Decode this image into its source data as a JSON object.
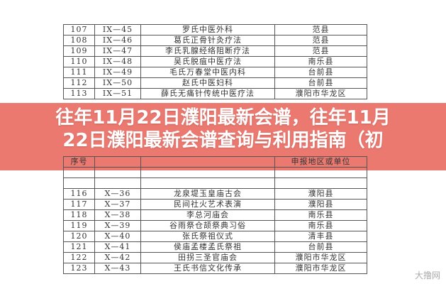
{
  "table_top": [
    [
      "107",
      "IX—45",
      "罗氏中医外科",
      "范县"
    ],
    [
      "108",
      "IX—46",
      "葛氏正骨针灸疗法",
      "范县"
    ],
    [
      "109",
      "IX—47",
      "李氏乳腺经络阻断疗法",
      "范县"
    ],
    [
      "110",
      "IX—48",
      "吴氏脱疽中医疗法",
      "南乐县"
    ],
    [
      "111",
      "IX—49",
      "毛氏万春堂中医内科",
      "台前县"
    ],
    [
      "112",
      "IX—50",
      "赵氏中医妇科",
      "台前县"
    ],
    [
      "113",
      "IX—51",
      "薛氏无痛针传统中医疗法",
      "濮阳市华龙区"
    ]
  ],
  "table_bottom": [
    [
      "序号",
      "",
      "",
      "申报地区或单位"
    ],
    [
      "",
      "",
      "",
      ""
    ],
    [
      "",
      "",
      "",
      ""
    ],
    [
      "116",
      "X—36",
      "龙泉堤玉皇庙古会",
      "濮阳县"
    ],
    [
      "117",
      "X—37",
      "民间社火艺术表演",
      "濮阳县"
    ],
    [
      "118",
      "X—38",
      "李总河庙会",
      "南乐县"
    ],
    [
      "119",
      "X—39",
      "谷雨祭仓颉祭典习俗",
      "南乐县"
    ],
    [
      "120",
      "X—40",
      "张氏祭祖仪式",
      "清丰县"
    ],
    [
      "121",
      "X—41",
      "侯庙孟楼孟氏祭祖",
      "台前县"
    ],
    [
      "122",
      "X—42",
      "田拐三圣官庙会",
      "濮阳市华龙区"
    ],
    [
      "123",
      "X—43",
      "王氏书信文化传承",
      "濮阳市华龙区"
    ]
  ],
  "title_line1": "往年11月22日濮阳最新会谱，往年11月",
  "title_line2": "22日濮阳最新会谱查询与利用指南（初",
  "watermark": "大撸网",
  "colors": {
    "band": "#e8665c",
    "title": "#ffffff"
  }
}
